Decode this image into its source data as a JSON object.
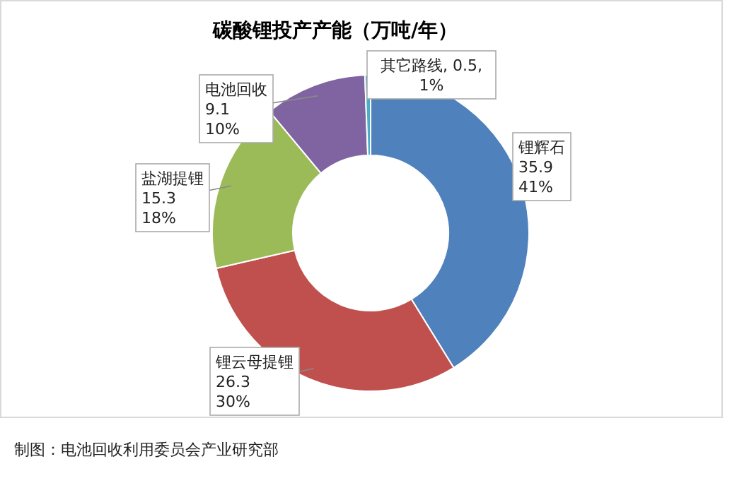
{
  "chart_data": {
    "type": "donut",
    "title": "碳酸锂投产产能（万吨/年）",
    "categories": [
      "锂辉石",
      "锂云母提锂",
      "盐湖提锂",
      "电池回收",
      "其它路线"
    ],
    "values": [
      35.9,
      26.3,
      15.3,
      9.1,
      0.5
    ],
    "colors": [
      "#4f81bd",
      "#c0504d",
      "#9bbb59",
      "#8064a2",
      "#4bacc6"
    ],
    "value_labels": [
      "35.9\n41%",
      "26.3\n30%",
      "15.3\n18%",
      "9.1\n10%",
      ", 0.5,\n1%"
    ],
    "annotations": [
      "制图：电池回收利用委员会产业研究部"
    ]
  }
}
